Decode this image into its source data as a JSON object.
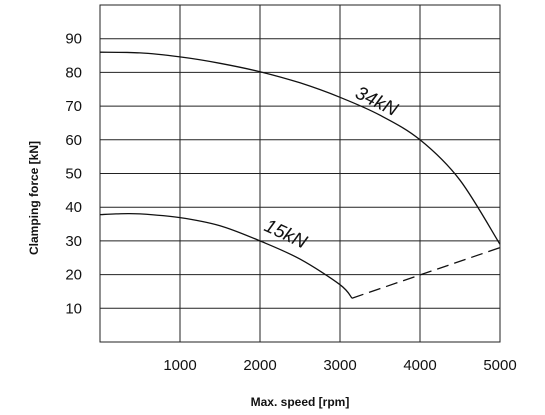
{
  "chart_data": {
    "type": "line",
    "xlabel": "Max. speed [rpm]",
    "ylabel": "Clamping force [kN]",
    "xlim": [
      0,
      5000
    ],
    "ylim": [
      0,
      100
    ],
    "x_ticks": [
      1000,
      2000,
      3000,
      4000,
      5000
    ],
    "y_ticks": [
      10,
      20,
      30,
      40,
      50,
      60,
      70,
      80,
      90
    ],
    "grid": true,
    "series": [
      {
        "name": "34kN",
        "style": "solid",
        "x": [
          0,
          500,
          1000,
          1500,
          2000,
          2500,
          3000,
          3500,
          4000,
          4500,
          5000
        ],
        "y": [
          86,
          85.8,
          84.6,
          82.7,
          80.2,
          76.9,
          72.6,
          67.3,
          60,
          48,
          29
        ]
      },
      {
        "name": "15kN",
        "style": "solid",
        "x": [
          0,
          200,
          500,
          1000,
          1500,
          2000,
          2500,
          3000,
          3150
        ],
        "y": [
          37.8,
          38,
          38,
          36.9,
          34.5,
          30,
          24.6,
          17,
          13
        ]
      },
      {
        "name": "",
        "style": "dashed",
        "x": [
          3150,
          5000
        ],
        "y": [
          13,
          28
        ]
      }
    ]
  }
}
